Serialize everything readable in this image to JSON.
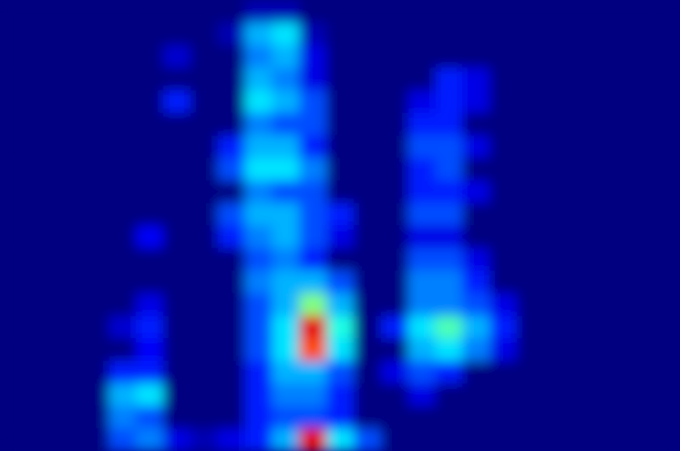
{
  "chart_data": {
    "type": "heatmap",
    "tick_labels": false,
    "color_range": [
      0,
      1
    ],
    "cells": [
      [
        0,
        0,
        0,
        0,
        0,
        0,
        0,
        0,
        0,
        0.05,
        0.05,
        0,
        0,
        0,
        0,
        0,
        0,
        0,
        0,
        0,
        0,
        0,
        0,
        0,
        0
      ],
      [
        0,
        0,
        0,
        0,
        0,
        0,
        0,
        0,
        0.05,
        0.3,
        0.35,
        0.05,
        0,
        0,
        0,
        0,
        0,
        0,
        0,
        0,
        0,
        0,
        0,
        0,
        0
      ],
      [
        0,
        0,
        0,
        0,
        0,
        0,
        0.08,
        0,
        0,
        0.25,
        0.3,
        0.1,
        0,
        0,
        0,
        0,
        0,
        0,
        0,
        0,
        0,
        0,
        0,
        0,
        0
      ],
      [
        0,
        0,
        0,
        0,
        0,
        0,
        0,
        0,
        0,
        0.3,
        0.25,
        0.1,
        0,
        0,
        0,
        0,
        0.15,
        0.1,
        0,
        0,
        0,
        0,
        0,
        0,
        0
      ],
      [
        0,
        0,
        0,
        0,
        0,
        0,
        0.15,
        0,
        0,
        0.35,
        0.3,
        0.2,
        0,
        0,
        0,
        0.1,
        0.15,
        0.1,
        0,
        0,
        0,
        0,
        0,
        0,
        0
      ],
      [
        0,
        0,
        0,
        0,
        0,
        0,
        0,
        0,
        0,
        0.25,
        0.2,
        0.2,
        0,
        0,
        0,
        0.15,
        0.15,
        0,
        0,
        0,
        0,
        0,
        0,
        0,
        0
      ],
      [
        0,
        0,
        0,
        0,
        0,
        0,
        0,
        0,
        0.15,
        0.3,
        0.3,
        0.15,
        0,
        0,
        0,
        0.2,
        0.2,
        0.1,
        0,
        0,
        0,
        0,
        0,
        0,
        0
      ],
      [
        0,
        0,
        0,
        0,
        0,
        0,
        0,
        0,
        0.2,
        0.35,
        0.35,
        0.25,
        0,
        0,
        0,
        0.15,
        0.2,
        0,
        0,
        0,
        0,
        0,
        0,
        0,
        0
      ],
      [
        0,
        0,
        0,
        0,
        0,
        0,
        0,
        0,
        0,
        0.25,
        0.2,
        0.2,
        0,
        0,
        0,
        0.15,
        0.15,
        0.1,
        0,
        0,
        0,
        0,
        0,
        0,
        0
      ],
      [
        0,
        0,
        0,
        0,
        0,
        0,
        0,
        0,
        0.2,
        0.3,
        0.3,
        0.2,
        0.15,
        0,
        0,
        0.2,
        0.2,
        0,
        0,
        0,
        0,
        0,
        0,
        0,
        0
      ],
      [
        0,
        0,
        0,
        0,
        0,
        0.12,
        0,
        0,
        0.15,
        0.25,
        0.3,
        0.2,
        0.1,
        0,
        0,
        0.1,
        0.1,
        0,
        0,
        0,
        0,
        0,
        0,
        0,
        0
      ],
      [
        0,
        0,
        0,
        0,
        0,
        0,
        0,
        0,
        0,
        0.2,
        0.25,
        0.15,
        0,
        0,
        0,
        0.2,
        0.2,
        0.1,
        0,
        0,
        0,
        0,
        0,
        0,
        0
      ],
      [
        0,
        0,
        0,
        0,
        0,
        0,
        0,
        0,
        0,
        0.25,
        0.3,
        0.3,
        0.2,
        0,
        0,
        0.25,
        0.25,
        0.15,
        0,
        0,
        0,
        0,
        0,
        0,
        0
      ],
      [
        0,
        0,
        0,
        0,
        0,
        0.1,
        0,
        0,
        0,
        0.2,
        0.3,
        0.5,
        0.3,
        0,
        0,
        0.25,
        0.25,
        0.2,
        0.1,
        0,
        0,
        0,
        0,
        0,
        0
      ],
      [
        0,
        0,
        0,
        0,
        0.08,
        0.15,
        0,
        0,
        0,
        0.2,
        0.35,
        0.9,
        0.4,
        0,
        0.15,
        0.35,
        0.45,
        0.3,
        0.15,
        0,
        0,
        0,
        0,
        0,
        0
      ],
      [
        0,
        0,
        0,
        0,
        0,
        0.12,
        0,
        0,
        0,
        0.2,
        0.35,
        0.8,
        0.35,
        0,
        0,
        0.3,
        0.35,
        0.25,
        0.1,
        0,
        0,
        0,
        0,
        0,
        0
      ],
      [
        0,
        0,
        0,
        0,
        0.15,
        0.15,
        0,
        0,
        0,
        0.15,
        0.3,
        0.3,
        0.2,
        0,
        0.1,
        0.2,
        0.15,
        0,
        0,
        0,
        0,
        0,
        0,
        0,
        0
      ],
      [
        0,
        0,
        0,
        0,
        0.3,
        0.35,
        0,
        0,
        0,
        0.15,
        0.25,
        0.25,
        0.15,
        0,
        0,
        0.1,
        0,
        0,
        0,
        0,
        0,
        0,
        0,
        0,
        0
      ],
      [
        0,
        0,
        0,
        0,
        0.25,
        0.2,
        0,
        0,
        0,
        0.15,
        0.2,
        0.2,
        0.15,
        0,
        0,
        0,
        0,
        0,
        0,
        0,
        0,
        0,
        0,
        0,
        0
      ],
      [
        0,
        0,
        0,
        0,
        0.2,
        0.25,
        0.1,
        0.05,
        0.1,
        0.15,
        0.3,
        0.9,
        0.35,
        0.2,
        0,
        0,
        0,
        0,
        0,
        0,
        0,
        0,
        0,
        0,
        0
      ]
    ]
  }
}
